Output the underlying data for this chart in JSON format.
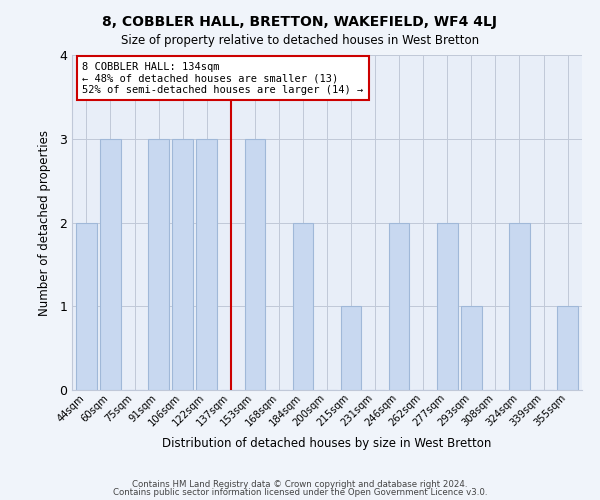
{
  "title": "8, COBBLER HALL, BRETTON, WAKEFIELD, WF4 4LJ",
  "subtitle": "Size of property relative to detached houses in West Bretton",
  "xlabel": "Distribution of detached houses by size in West Bretton",
  "ylabel": "Number of detached properties",
  "bar_labels": [
    "44sqm",
    "60sqm",
    "75sqm",
    "91sqm",
    "106sqm",
    "122sqm",
    "137sqm",
    "153sqm",
    "168sqm",
    "184sqm",
    "200sqm",
    "215sqm",
    "231sqm",
    "246sqm",
    "262sqm",
    "277sqm",
    "293sqm",
    "308sqm",
    "324sqm",
    "339sqm",
    "355sqm"
  ],
  "bar_heights": [
    2,
    3,
    0,
    3,
    3,
    3,
    0,
    3,
    0,
    2,
    0,
    1,
    0,
    2,
    0,
    2,
    1,
    0,
    2,
    0,
    1
  ],
  "highlight_index": 6,
  "bar_color": "#c8d8f0",
  "bar_edgecolor": "#a0b8d8",
  "highlight_line_color": "#cc0000",
  "ylim": [
    0,
    4
  ],
  "yticks": [
    0,
    1,
    2,
    3,
    4
  ],
  "annotation_line1": "8 COBBLER HALL: 134sqm",
  "annotation_line2": "← 48% of detached houses are smaller (13)",
  "annotation_line3": "52% of semi-detached houses are larger (14) →",
  "annotation_box_edgecolor": "#cc0000",
  "footer_line1": "Contains HM Land Registry data © Crown copyright and database right 2024.",
  "footer_line2": "Contains public sector information licensed under the Open Government Licence v3.0.",
  "background_color": "#f0f4fa",
  "plot_background_color": "#e8eef8",
  "figsize": [
    6.0,
    5.0
  ],
  "dpi": 100
}
